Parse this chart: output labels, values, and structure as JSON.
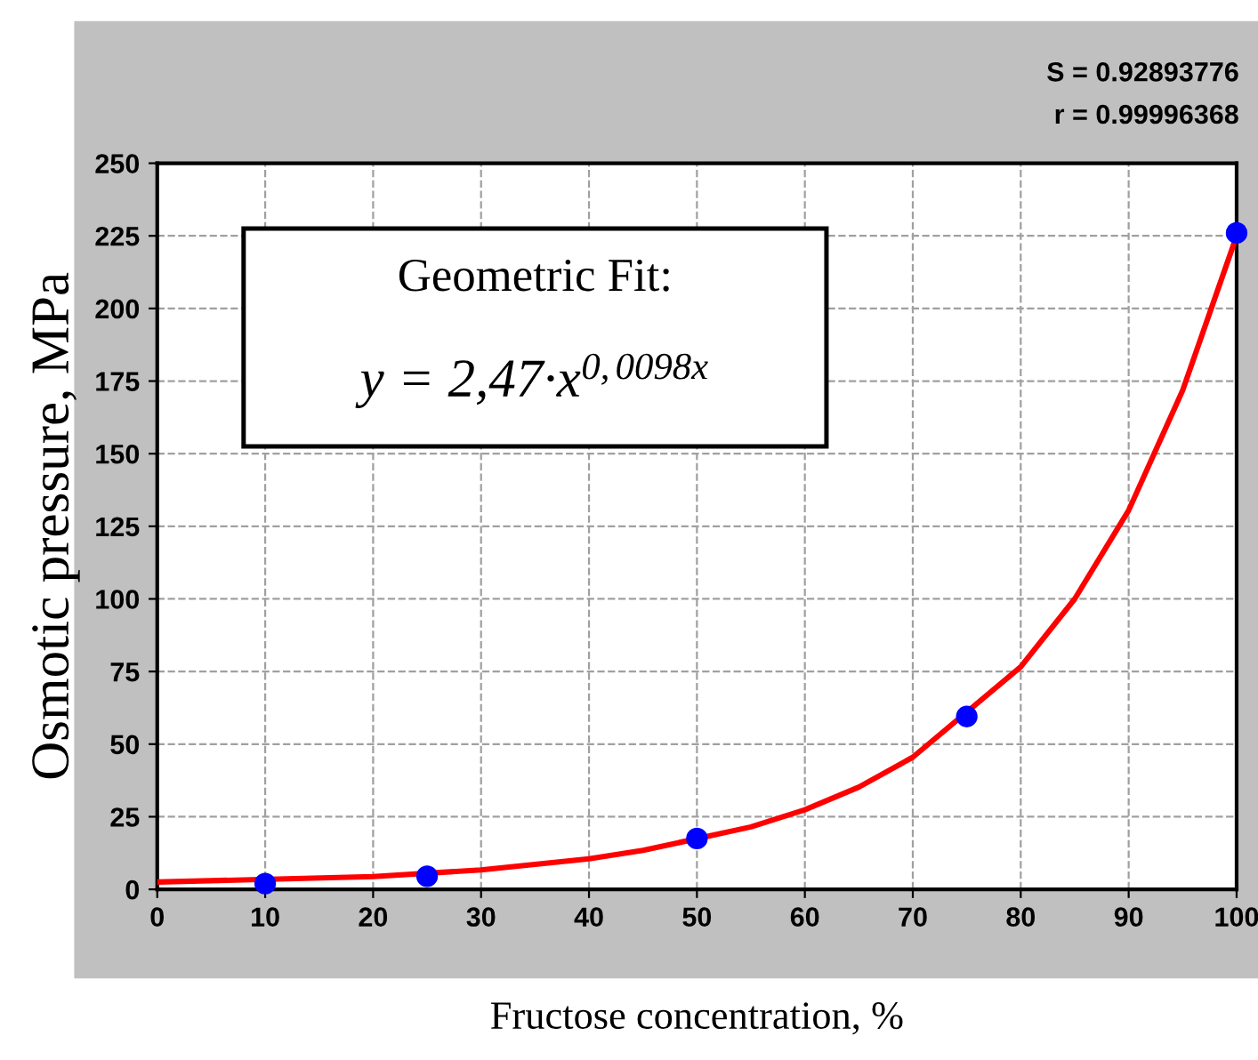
{
  "chart_data": {
    "type": "scatter",
    "xlabel": "Fructose concentration, %",
    "ylabel": "Osmotic pressure, MPa",
    "xlim": [
      0,
      100
    ],
    "xticks": [
      0,
      10,
      20,
      30,
      40,
      50,
      60,
      70,
      80,
      90,
      100
    ],
    "ylim": [
      0,
      250
    ],
    "yticks": [
      0,
      25,
      50,
      75,
      100,
      125,
      150,
      175,
      200,
      225,
      250
    ],
    "grid": true,
    "legend": false,
    "series": [
      {
        "marker": "circle",
        "color": "#0000ff",
        "x": [
          10,
          25,
          50,
          75,
          100
        ],
        "values": [
          2,
          4.5,
          17.5,
          59.5,
          226
        ]
      },
      {
        "type": "line",
        "color": "#ff0000",
        "line_style": "solid",
        "x": [
          0,
          20,
          30,
          40,
          45,
          55,
          60,
          65,
          70,
          80,
          85,
          90,
          95,
          100
        ],
        "values": [
          2.5,
          4.4,
          6.7,
          10.5,
          13.4,
          21.5,
          27.4,
          35.2,
          45.5,
          76.6,
          100,
          130.5,
          171.8,
          225
        ]
      }
    ],
    "annotations": [
      "S = 0.92893776",
      "r = 0.99996368",
      "Geometric Fit:",
      "y = 2,47·x$^{0,0098x}$"
    ]
  }
}
